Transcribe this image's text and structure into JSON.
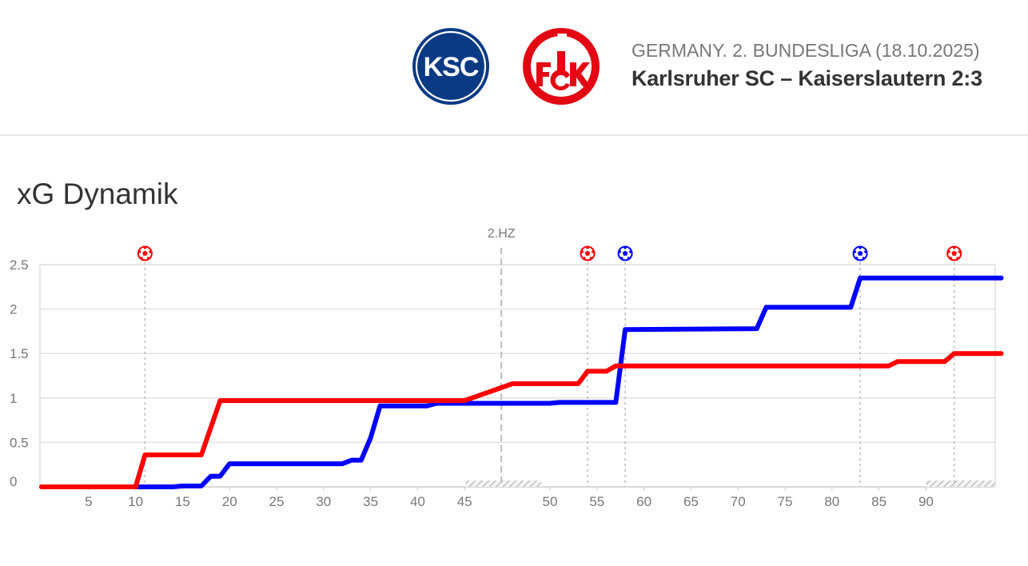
{
  "header": {
    "league_line": "GERMANY. 2. BUNDESLIGA (18.10.2025)",
    "match_line": "Karlsruher SC – Kaiserslautern 2:3",
    "home_crest": {
      "icon": "ksc-crest-icon",
      "text": "KSC",
      "color": "#0a3a84"
    },
    "away_crest": {
      "icon": "fck-crest-icon",
      "text": "1FCK",
      "color": "#e30613"
    }
  },
  "section_title": "xG Dynamik",
  "chart_data": {
    "type": "line",
    "xlabel": "",
    "ylabel": "",
    "ylim": [
      0,
      2.5
    ],
    "y_ticks": [
      "0",
      "0.5",
      "1",
      "1.5",
      "2",
      "2.5"
    ],
    "x_ticks_first_half": [
      "5",
      "10",
      "15",
      "20",
      "25",
      "30",
      "35",
      "40",
      "45"
    ],
    "x_ticks_second_half": [
      "50",
      "55",
      "60",
      "65",
      "70",
      "75",
      "80",
      "85",
      "90"
    ],
    "halftime_label": "2.HZ",
    "grid": true,
    "series": [
      {
        "color": "#ff0000",
        "points": [
          [
            0,
            0
          ],
          [
            10,
            0
          ],
          [
            11,
            0.36
          ],
          [
            17,
            0.36
          ],
          [
            19,
            0.97
          ],
          [
            45,
            0.97
          ],
          [
            46,
            1.16
          ],
          [
            53,
            1.16
          ],
          [
            54,
            1.3
          ],
          [
            56,
            1.3
          ],
          [
            57,
            1.36
          ],
          [
            86,
            1.36
          ],
          [
            87,
            1.41
          ],
          [
            92,
            1.41
          ],
          [
            93,
            1.5
          ],
          [
            98,
            1.5
          ]
        ]
      },
      {
        "color": "#0000ff",
        "points": [
          [
            0,
            0
          ],
          [
            10,
            0
          ],
          [
            14,
            0
          ],
          [
            15,
            0.01
          ],
          [
            17,
            0.01
          ],
          [
            18,
            0.12
          ],
          [
            19,
            0.12
          ],
          [
            20,
            0.26
          ],
          [
            32,
            0.26
          ],
          [
            33,
            0.3
          ],
          [
            34,
            0.3
          ],
          [
            35,
            0.55
          ],
          [
            36,
            0.91
          ],
          [
            41,
            0.91
          ],
          [
            42,
            0.94
          ],
          [
            50,
            0.94
          ],
          [
            51,
            0.95
          ],
          [
            57,
            0.95
          ],
          [
            58,
            1.77
          ],
          [
            72,
            1.78
          ],
          [
            73,
            2.02
          ],
          [
            82,
            2.02
          ],
          [
            83,
            2.35
          ],
          [
            98,
            2.35
          ]
        ]
      }
    ],
    "goals": [
      {
        "minute": 11,
        "color": "#ff0000",
        "icon": "goal-ball-icon"
      },
      {
        "minute": 54,
        "color": "#ff0000",
        "icon": "goal-ball-icon"
      },
      {
        "minute": 58,
        "color": "#0000ff",
        "icon": "goal-ball-icon"
      },
      {
        "minute": 83,
        "color": "#0000ff",
        "icon": "goal-ball-icon"
      },
      {
        "minute": 93,
        "color": "#ff0000",
        "icon": "goal-ball-icon"
      }
    ],
    "added_time_1st_half": [
      45,
      49
    ],
    "added_time_2nd_half": [
      90,
      98
    ]
  }
}
